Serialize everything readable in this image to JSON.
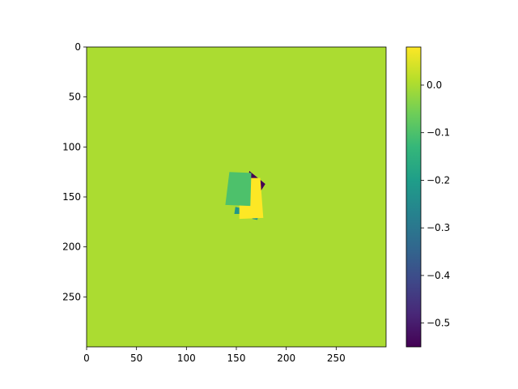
{
  "chart_data": {
    "type": "heatmap",
    "title": "",
    "xlabel": "",
    "ylabel": "",
    "xlim": [
      0,
      300
    ],
    "ylim": [
      300,
      0
    ],
    "grid": false,
    "x_ticks": [
      0,
      50,
      100,
      150,
      200,
      250
    ],
    "y_ticks": [
      0,
      50,
      100,
      150,
      200,
      250
    ],
    "background_value": 0.0,
    "regions": [
      {
        "name": "dark patch",
        "value": -0.55,
        "polygon": [
          [
            163,
            124
          ],
          [
            179,
            137
          ],
          [
            170,
            151
          ],
          [
            160,
            149
          ]
        ]
      },
      {
        "name": "teal spot",
        "value": -0.22,
        "polygon": [
          [
            149,
            160
          ],
          [
            154,
            161
          ],
          [
            154,
            167
          ],
          [
            148,
            167
          ]
        ]
      },
      {
        "name": "teal sliver",
        "value": -0.22,
        "polygon": [
          [
            166,
            169
          ],
          [
            172,
            170
          ],
          [
            171,
            173
          ],
          [
            166,
            172
          ]
        ]
      },
      {
        "name": "yellow strip",
        "value": 0.08,
        "polygon": [
          [
            164,
            131
          ],
          [
            174,
            131
          ],
          [
            177,
            171
          ],
          [
            153,
            172
          ],
          [
            153,
            158
          ],
          [
            164,
            150
          ]
        ]
      },
      {
        "name": "green square",
        "value": -0.1,
        "polygon": [
          [
            143,
            125
          ],
          [
            165,
            126
          ],
          [
            164,
            159
          ],
          [
            139,
            158
          ]
        ]
      }
    ],
    "colorbar": {
      "vmin": -0.55,
      "vmax": 0.08,
      "ticks": [
        0.0,
        -0.1,
        -0.2,
        -0.3,
        -0.4,
        -0.5
      ],
      "tick_labels": [
        "0.0",
        "−0.1",
        "−0.2",
        "−0.3",
        "−0.4",
        "−0.5"
      ],
      "colormap": "viridis"
    },
    "colors": {
      "axis": "#000000",
      "colormap_stops": [
        "#440154",
        "#482878",
        "#3e4989",
        "#31688e",
        "#26828e",
        "#1f9e89",
        "#35b779",
        "#6ece58",
        "#b5de2b",
        "#fde725"
      ]
    }
  }
}
